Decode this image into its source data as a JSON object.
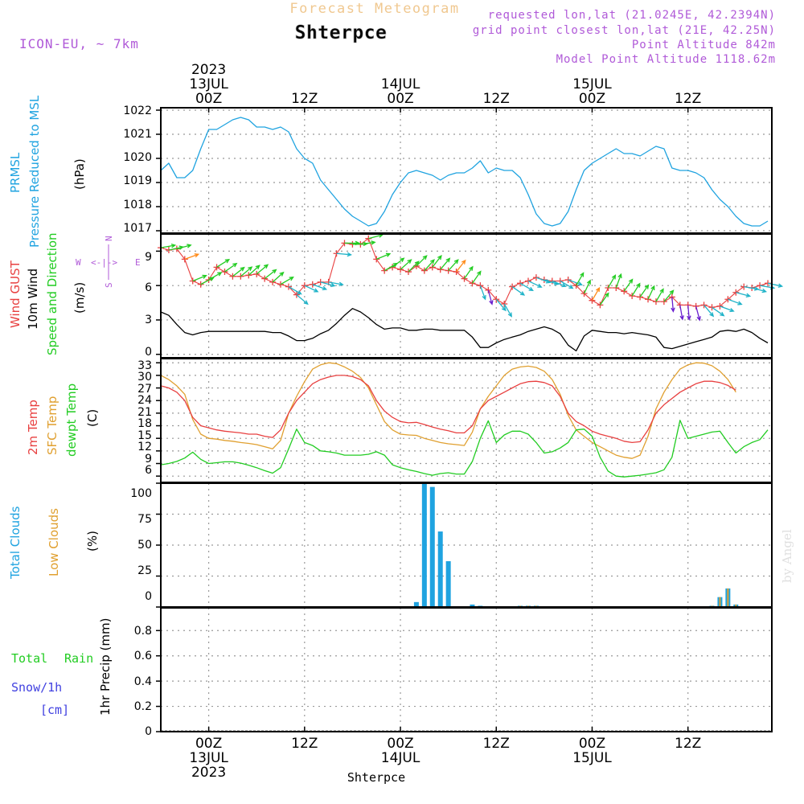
{
  "header": {
    "top_title": "Forecast Meteogram",
    "place": "Shterpce",
    "model": "ICON-EU, ~ 7km",
    "requested": "requested lon,lat (21.0245E, 42.2394N)",
    "grid_point": "grid point closest lon,lat (21E, 42.25N)",
    "point_alt": "Point Altitude 842m",
    "model_alt": "Model Point Altitude 1118.62m",
    "watermark": "by Angel"
  },
  "colors": {
    "pressure": "#1fa3e0",
    "gust": "#e84040",
    "wind": "#000000",
    "arrows": "#22cc22",
    "temp2m": "#e84040",
    "sfc": "#e0a030",
    "dewpt": "#22cc22",
    "cloud_total": "#1fa3e0",
    "cloud_low": "#e0a030",
    "rain": "#22cc22",
    "snow": "#4040e0",
    "purple": "#b05ad8"
  },
  "time_axis": {
    "top_labels": [
      {
        "hour": 6,
        "lines": [
          "2023",
          "13JUL",
          "00Z"
        ]
      },
      {
        "hour": 18,
        "lines": [
          "12Z"
        ]
      },
      {
        "hour": 30,
        "lines": [
          "14JUL",
          "00Z"
        ]
      },
      {
        "hour": 42,
        "lines": [
          "12Z"
        ]
      },
      {
        "hour": 54,
        "lines": [
          "15JUL",
          "00Z"
        ]
      },
      {
        "hour": 66,
        "lines": [
          "12Z"
        ]
      }
    ],
    "bottom_labels": [
      {
        "hour": 6,
        "lines": [
          "00Z",
          "13JUL",
          "2023"
        ]
      },
      {
        "hour": 18,
        "lines": [
          "12Z"
        ]
      },
      {
        "hour": 30,
        "lines": [
          "00Z",
          "14JUL"
        ]
      },
      {
        "hour": 42,
        "lines": [
          "12Z"
        ]
      },
      {
        "hour": 54,
        "lines": [
          "00Z",
          "15JUL"
        ]
      },
      {
        "hour": 66,
        "lines": [
          "12Z"
        ]
      }
    ],
    "bottom_place": "Shterpce",
    "x_range": [
      0,
      76.5
    ]
  },
  "panels": {
    "pressure": {
      "labels": [
        "PRMSL",
        "Pressure Reduced to MSL"
      ],
      "unit": "(hPa)",
      "ticks": [
        "1022",
        "1021",
        "1020",
        "1019",
        "1018",
        "1017"
      ]
    },
    "wind": {
      "labels": [
        "Wind GUST",
        "10m Wind",
        "Speed and Direction"
      ],
      "unit": "(m/s)",
      "ticks": [
        "9",
        "6",
        "3",
        "0"
      ],
      "compass": {
        "n": "N",
        "s": "S",
        "w": "W",
        "e": "E",
        "arrow": "<-|->"
      }
    },
    "temp": {
      "labels": [
        "2m Temp",
        "SFC Temp",
        "dewpt Temp"
      ],
      "unit": "(C)",
      "ticks": [
        "33",
        "30",
        "27",
        "24",
        "21",
        "18",
        "15",
        "12",
        "9",
        "6"
      ]
    },
    "clouds": {
      "labels": [
        "Total Clouds",
        "Low Clouds"
      ],
      "unit": "(%)",
      "ticks": [
        "100",
        "75",
        "50",
        "25",
        "0"
      ]
    },
    "precip": {
      "labels": [
        "Total",
        "Rain",
        "Snow/1h",
        "[cm]"
      ],
      "unit": "1hr Precip (mm)",
      "ticks": [
        "0.8",
        "0.6",
        "0.4",
        "0.2",
        "0"
      ]
    }
  },
  "chart_data": {
    "type": "line",
    "title": "Forecast Meteogram Shterpce",
    "x_unit": "hours from 12 JUL 2023 18Z",
    "pressure": {
      "ylabel": "PRMSL (hPa)",
      "ylim": [
        1016.9,
        1022.1
      ],
      "x": [
        0,
        1,
        2,
        3,
        4,
        5,
        6,
        7,
        8,
        9,
        10,
        11,
        12,
        13,
        14,
        15,
        16,
        17,
        18,
        19,
        20,
        21,
        22,
        23,
        24,
        25,
        26,
        27,
        28,
        29,
        30,
        31,
        32,
        33,
        34,
        35,
        36,
        37,
        38,
        39,
        40,
        41,
        42,
        43,
        44,
        45,
        46,
        47,
        48,
        49,
        50,
        51,
        52,
        53,
        54,
        55,
        56,
        57,
        58,
        59,
        60,
        61,
        62,
        63,
        64,
        65,
        66,
        67,
        68,
        69,
        70,
        71,
        72,
        73,
        74,
        75,
        76
      ],
      "values": [
        1019.5,
        1019.8,
        1019.2,
        1019.2,
        1019.5,
        1020.4,
        1021.2,
        1021.2,
        1021.4,
        1021.6,
        1021.7,
        1021.6,
        1021.3,
        1021.3,
        1021.2,
        1021.3,
        1021.1,
        1020.4,
        1020.0,
        1019.8,
        1019.1,
        1018.7,
        1018.3,
        1017.9,
        1017.6,
        1017.4,
        1017.2,
        1017.3,
        1017.8,
        1018.5,
        1019.0,
        1019.4,
        1019.5,
        1019.4,
        1019.3,
        1019.1,
        1019.3,
        1019.4,
        1019.4,
        1019.6,
        1019.9,
        1019.4,
        1019.6,
        1019.5,
        1019.5,
        1019.2,
        1018.5,
        1017.7,
        1017.3,
        1017.2,
        1017.3,
        1017.8,
        1018.7,
        1019.5,
        1019.8,
        1020.0,
        1020.2,
        1020.4,
        1020.2,
        1020.2,
        1020.1,
        1020.3,
        1020.5,
        1020.4,
        1019.6,
        1019.5,
        1019.5,
        1019.4,
        1019.2,
        1018.7,
        1018.3,
        1018.0,
        1017.6,
        1017.3,
        1017.2,
        1017.2,
        1017.4
      ]
    },
    "wind": {
      "ylabel": "m/s",
      "ylim": [
        -0.3,
        10.5
      ],
      "gust_x": [
        0,
        1,
        2,
        3,
        4,
        5,
        6,
        7,
        8,
        9,
        10,
        11,
        12,
        13,
        14,
        15,
        16,
        17,
        18,
        19,
        20,
        21,
        22,
        23,
        24,
        25,
        26,
        27,
        28,
        29,
        30,
        31,
        32,
        33,
        34,
        35,
        36,
        37,
        38,
        39,
        40,
        41,
        42,
        43,
        44,
        45,
        46,
        47,
        48,
        49,
        50,
        51,
        52,
        53,
        54,
        55,
        56,
        57,
        58,
        59,
        60,
        61,
        62,
        63,
        64,
        65,
        66,
        67,
        68,
        69,
        70,
        71,
        72,
        73,
        74,
        75,
        76
      ],
      "gust": [
        9.3,
        9.1,
        9.2,
        8.3,
        6.4,
        6.1,
        6.5,
        7.6,
        7.2,
        6.8,
        6.8,
        6.9,
        7.0,
        6.6,
        6.3,
        6.1,
        5.9,
        5.2,
        6.0,
        6.1,
        6.3,
        6.3,
        8.8,
        9.7,
        9.6,
        9.6,
        10.1,
        8.3,
        7.3,
        7.6,
        7.4,
        7.2,
        7.7,
        7.3,
        7.6,
        7.4,
        7.3,
        7.2,
        6.6,
        6.2,
        6.0,
        5.6,
        4.8,
        4.4,
        5.9,
        6.2,
        6.4,
        6.7,
        6.5,
        6.4,
        6.4,
        6.5,
        6.0,
        5.3,
        4.7,
        4.3,
        5.8,
        5.8,
        5.5,
        5.1,
        5.0,
        4.8,
        4.6,
        4.6,
        5.0,
        4.3,
        4.3,
        4.2,
        4.3,
        4.1,
        4.2,
        4.8,
        5.4,
        5.9,
        5.8,
        6.0,
        6.2
      ],
      "speed_x": [
        0,
        1,
        2,
        3,
        4,
        5,
        6,
        7,
        8,
        9,
        10,
        11,
        12,
        13,
        14,
        15,
        16,
        17,
        18,
        19,
        20,
        21,
        22,
        23,
        24,
        25,
        26,
        27,
        28,
        29,
        30,
        31,
        32,
        33,
        34,
        35,
        36,
        37,
        38,
        39,
        40,
        41,
        42,
        43,
        44,
        45,
        46,
        47,
        48,
        49,
        50,
        51,
        52,
        53,
        54,
        55,
        56,
        57,
        58,
        59,
        60,
        61,
        62,
        63,
        64,
        65,
        66,
        67,
        68,
        69,
        70,
        71,
        72,
        73,
        74,
        75,
        76
      ],
      "speed": [
        3.7,
        3.4,
        2.6,
        1.9,
        1.7,
        1.9,
        2.0,
        2.0,
        2.0,
        2.0,
        2.0,
        2.0,
        2.0,
        2.0,
        1.9,
        1.9,
        1.6,
        1.2,
        1.2,
        1.4,
        1.8,
        2.1,
        2.7,
        3.4,
        4.0,
        3.7,
        3.2,
        2.6,
        2.2,
        2.3,
        2.3,
        2.1,
        2.1,
        2.2,
        2.2,
        2.1,
        2.1,
        2.1,
        2.1,
        1.5,
        0.6,
        0.6,
        1.0,
        1.3,
        1.5,
        1.7,
        2.0,
        2.2,
        2.4,
        2.2,
        1.8,
        0.8,
        0.3,
        1.6,
        2.1,
        2.0,
        1.9,
        1.9,
        1.8,
        1.9,
        1.8,
        1.7,
        1.5,
        0.6,
        0.5,
        0.7,
        0.9,
        1.1,
        1.3,
        1.5,
        2.0,
        2.1,
        2.0,
        2.2,
        1.9,
        1.4,
        1.0
      ],
      "arrow_x": [
        0,
        1,
        2,
        3,
        4,
        5,
        6,
        7,
        8,
        9,
        10,
        11,
        12,
        13,
        14,
        15,
        16,
        17,
        18,
        19,
        20,
        21,
        22,
        23,
        24,
        25,
        26,
        27,
        28,
        29,
        30,
        31,
        32,
        33,
        34,
        35,
        36,
        37,
        38,
        39,
        40,
        41,
        42,
        43,
        44,
        45,
        46,
        47,
        48,
        49,
        50,
        51,
        52,
        53,
        54,
        55,
        56,
        57,
        58,
        59,
        60,
        61,
        62,
        63,
        64,
        65,
        66,
        67,
        68,
        69,
        70,
        71,
        72,
        73,
        74,
        75,
        76
      ],
      "arrow_dir_deg": [
        260,
        258,
        255,
        250,
        248,
        242,
        240,
        238,
        235,
        232,
        230,
        228,
        230,
        232,
        228,
        240,
        300,
        310,
        295,
        290,
        285,
        280,
        275,
        270,
        268,
        262,
        255,
        248,
        240,
        232,
        228,
        225,
        225,
        222,
        218,
        220,
        222,
        218,
        215,
        215,
        340,
        345,
        320,
        330,
        305,
        300,
        295,
        290,
        288,
        292,
        300,
        290,
        210,
        205,
        210,
        215,
        210,
        200,
        215,
        212,
        215,
        205,
        210,
        220,
        355,
        350,
        355,
        345,
        320,
        305,
        290,
        290,
        285,
        280,
        285,
        280,
        282
      ]
    },
    "temperature": {
      "ylabel": "C",
      "ylim": [
        4.5,
        34
      ],
      "x": [
        0,
        1,
        2,
        3,
        4,
        5,
        6,
        7,
        8,
        9,
        10,
        11,
        12,
        13,
        14,
        15,
        16,
        17,
        18,
        19,
        20,
        21,
        22,
        23,
        24,
        25,
        26,
        27,
        28,
        29,
        30,
        31,
        32,
        33,
        34,
        35,
        36,
        37,
        38,
        39,
        40,
        41,
        42,
        43,
        44,
        45,
        46,
        47,
        48,
        49,
        50,
        51,
        52,
        53,
        54,
        55,
        56,
        57,
        58,
        59,
        60,
        61,
        62,
        63,
        64,
        65,
        66,
        67,
        68,
        69,
        70,
        71,
        72,
        73,
        74,
        75,
        76
      ],
      "t2m": [
        27.5,
        27.0,
        26.0,
        24.0,
        20.0,
        18.0,
        17.5,
        17.0,
        16.7,
        16.5,
        16.3,
        16.0,
        16.0,
        15.5,
        15.2,
        17.0,
        21.0,
        24.0,
        26.0,
        28.0,
        29.0,
        29.6,
        30.0,
        30.0,
        29.7,
        29.0,
        27.5,
        24.0,
        21.5,
        20.0,
        19.0,
        18.7,
        18.8,
        18.3,
        17.7,
        17.2,
        16.8,
        16.3,
        16.3,
        18.0,
        22.0,
        24.0,
        25.0,
        26.0,
        27.0,
        28.0,
        28.5,
        28.6,
        28.3,
        27.5,
        25.0,
        21.0,
        19.0,
        18.0,
        16.7,
        16.0,
        15.5,
        15.0,
        14.3,
        14.0,
        14.2,
        17.0,
        21.0,
        23.0,
        24.5,
        26.0,
        27.0,
        28.0,
        28.6,
        28.6,
        28.3,
        27.6,
        26.5
      ],
      "sfc": [
        30.0,
        29.0,
        27.5,
        25.5,
        19.5,
        16.0,
        15.0,
        14.8,
        14.5,
        14.3,
        14.0,
        13.8,
        13.5,
        13.0,
        12.5,
        14.5,
        21.0,
        25.0,
        28.5,
        31.5,
        32.5,
        33.0,
        32.8,
        32.0,
        31.0,
        29.5,
        27.0,
        23.0,
        19.0,
        17.0,
        16.0,
        15.8,
        15.7,
        15.0,
        14.5,
        14.0,
        13.7,
        13.5,
        13.3,
        16.5,
        22.0,
        25.0,
        27.5,
        30.0,
        31.5,
        32.0,
        32.2,
        31.9,
        31.0,
        29.0,
        25.5,
        20.5,
        17.0,
        15.5,
        14.0,
        13.0,
        12.0,
        11.0,
        10.5,
        10.2,
        11.0,
        15.5,
        22.0,
        26.0,
        29.0,
        31.5,
        32.5,
        33.0,
        32.9,
        32.3,
        31.0,
        29.0,
        26.0
      ],
      "dewpt": [
        8.7,
        9.0,
        9.5,
        10.3,
        11.7,
        10.0,
        9.0,
        9.2,
        9.4,
        9.4,
        9.1,
        8.6,
        8.0,
        7.3,
        6.7,
        8.0,
        12.5,
        17.2,
        14.0,
        13.3,
        12.0,
        11.8,
        11.5,
        11.0,
        11.0,
        11.0,
        11.2,
        11.8,
        11.0,
        8.7,
        8.0,
        7.5,
        7.1,
        6.6,
        6.2,
        6.6,
        6.8,
        6.5,
        6.5,
        9.5,
        15.0,
        19.2,
        14.0,
        15.8,
        16.7,
        16.7,
        16.0,
        14.0,
        11.5,
        11.8,
        12.7,
        14.0,
        17.0,
        17.2,
        15.5,
        10.5,
        7.2,
        6.0,
        5.8,
        6.0,
        6.2,
        6.5,
        6.8,
        7.5,
        10.5,
        19.3,
        15.0,
        15.5,
        16.0,
        16.5,
        16.7,
        14.0,
        11.5,
        13.0,
        14.0,
        14.7,
        17.0
      ]
    },
    "clouds": {
      "ylabel": "%",
      "ylim": [
        0,
        100
      ],
      "x": [
        0,
        1,
        2,
        3,
        4,
        5,
        6,
        7,
        8,
        9,
        10,
        11,
        12,
        13,
        14,
        15,
        16,
        17,
        18,
        19,
        20,
        21,
        22,
        23,
        24,
        25,
        26,
        27,
        28,
        29,
        30,
        31,
        32,
        33,
        34,
        35,
        36,
        37,
        38,
        39,
        40,
        41,
        42,
        43,
        44,
        45,
        46,
        47,
        48,
        49,
        50,
        51,
        52,
        53,
        54,
        55,
        56,
        57,
        58,
        59,
        60,
        61,
        62,
        63,
        64,
        65,
        66,
        67,
        68,
        69,
        70,
        71,
        72,
        73,
        74,
        75,
        76
      ],
      "total": [
        0,
        0,
        0,
        0,
        0,
        0,
        0,
        0,
        0,
        0,
        0,
        0,
        0,
        0,
        0,
        0,
        0,
        0,
        0,
        0,
        0,
        0,
        0,
        0,
        0,
        0,
        0,
        0,
        0,
        0,
        0,
        0,
        4,
        100,
        97,
        61,
        37,
        0,
        0,
        2,
        1,
        0,
        0,
        0,
        0,
        1,
        1,
        1,
        0,
        0,
        0,
        0,
        0,
        0,
        0,
        0,
        0,
        0,
        0,
        0,
        0,
        0,
        0,
        0,
        0,
        0,
        0,
        0,
        0,
        1,
        8,
        15,
        2,
        0,
        0,
        0,
        0
      ],
      "low": [
        0,
        0,
        0,
        0,
        0,
        0,
        0,
        0,
        0,
        0,
        0,
        0,
        0,
        0,
        0,
        0,
        0,
        0,
        0,
        0,
        0,
        0,
        0,
        0,
        0,
        0,
        0,
        0,
        0,
        0,
        0,
        0,
        0,
        0,
        0,
        0,
        0,
        0,
        0,
        0,
        0,
        0,
        0,
        0,
        0,
        1,
        1,
        1,
        0,
        0,
        0,
        0,
        0,
        0,
        0,
        0,
        0,
        0,
        0,
        0,
        0,
        0,
        0,
        0,
        0,
        0,
        0,
        0,
        0,
        1,
        8,
        15,
        2,
        0,
        0,
        0,
        0
      ]
    },
    "precip": {
      "ylabel": "1hr Precip (mm)",
      "ylim": [
        0,
        0.98
      ],
      "rain": [],
      "snow": []
    }
  }
}
